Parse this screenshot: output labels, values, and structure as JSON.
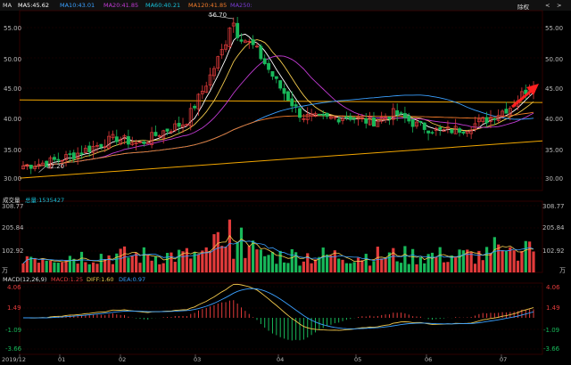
{
  "header": {
    "symbol": "MA",
    "ma5": "MA5:45.62",
    "ma10": "MA10:43.01",
    "ma20": "MA20:41.85",
    "ma60": "MA60:40.21",
    "ma120": "MA120:41.85",
    "ma250": "MA250:",
    "adjust_button": "除权",
    "prev_label": "<",
    "next_label": ">"
  },
  "price_axis": {
    "left": [
      "55.00",
      "50.00",
      "45.00",
      "40.00",
      "35.00",
      "30.00"
    ],
    "right": [
      "55.00",
      "50.00",
      "45.00",
      "40.00",
      "35.00",
      "30.00"
    ],
    "high_label": "56.70",
    "low_label": "32.20"
  },
  "volume": {
    "title": "成交量",
    "total": "总量:1535427",
    "left": [
      "308.77",
      "205.84",
      "102.92",
      "万"
    ],
    "right": [
      "308.77",
      "205.84",
      "102.92",
      "万"
    ]
  },
  "macd": {
    "title": "MACD(12,26,9)",
    "macd_value": "MACD:1.25",
    "diff_value": "DIFF:1.60",
    "dea_value": "DEA:0.97",
    "left": [
      "4.06",
      "1.49",
      "-1.09",
      "-3.66"
    ],
    "right": [
      "4.06",
      "1.49",
      "-1.09",
      "-3.66"
    ]
  },
  "x_axis": [
    "2019/12",
    "01",
    "02",
    "03",
    "04",
    "05",
    "06",
    "07"
  ],
  "colors": {
    "up": "#e23b3b",
    "down": "#18b85a",
    "ma5": "#ffffff",
    "ma10": "#f2c94c",
    "ma20": "#c23bd4",
    "ma60": "#3aa0ff",
    "ma120": "#f07a2a",
    "arrow": "#ff2020"
  },
  "chart_data": {
    "type": "candlestick",
    "ylim": [
      29,
      58
    ],
    "x": [
      "2019/12",
      "01",
      "02",
      "03",
      "04",
      "05",
      "06",
      "07"
    ],
    "close_approx": [
      33.0,
      33.5,
      34.5,
      36.0,
      37.5,
      36.5,
      38.5,
      40.0,
      47.0,
      55.0,
      52.0,
      46.0,
      41.0,
      40.5,
      41.0,
      40.0,
      41.5,
      39.5,
      38.5,
      39.0,
      40.5,
      42.5,
      46.5
    ],
    "support_line": {
      "from": 31.0,
      "to": 37.0
    },
    "resistance_line": {
      "from": 43.6,
      "to": 43.2
    }
  }
}
